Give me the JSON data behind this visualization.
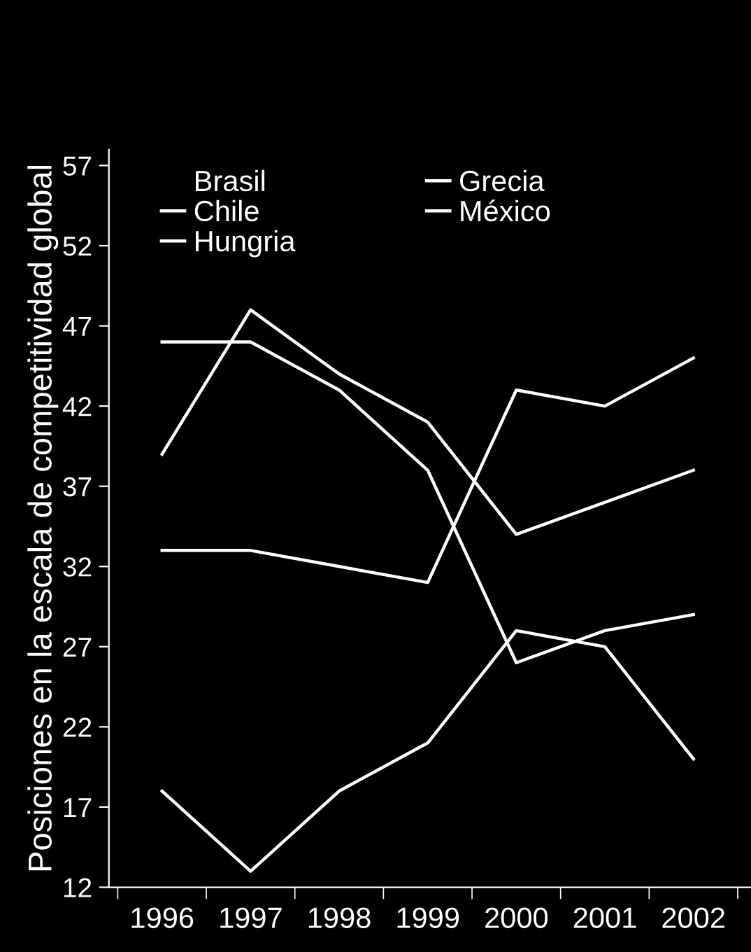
{
  "chart_data": {
    "type": "line",
    "ylabel": "Posiciones en la escala de competitividad global",
    "categories": [
      "1996",
      "1997",
      "1998",
      "1999",
      "2000",
      "2001",
      "2002"
    ],
    "series": [
      {
        "name": "Brasil",
        "values": [
          null,
          null,
          null,
          null,
          null,
          null,
          null
        ]
      },
      {
        "name": "Chile",
        "color": "#ffffff",
        "values": [
          18,
          13,
          18,
          21,
          28,
          27,
          20
        ]
      },
      {
        "name": "Hungria",
        "color": "#ffffff",
        "values": [
          46,
          46,
          43,
          38,
          26,
          28,
          29
        ]
      },
      {
        "name": "Grecia",
        "color": "#ffffff",
        "values": [
          39,
          48,
          44,
          41,
          34,
          36,
          38
        ]
      },
      {
        "name": "México",
        "color": "#ffffff",
        "values": [
          33,
          33,
          32,
          31,
          43,
          42,
          45
        ]
      }
    ],
    "ylim": [
      12,
      58
    ],
    "yticks": [
      12,
      17,
      22,
      27,
      32,
      37,
      42,
      47,
      52,
      57
    ],
    "grid": false,
    "legend": "top left",
    "marker": "none",
    "line_style": "solid"
  }
}
